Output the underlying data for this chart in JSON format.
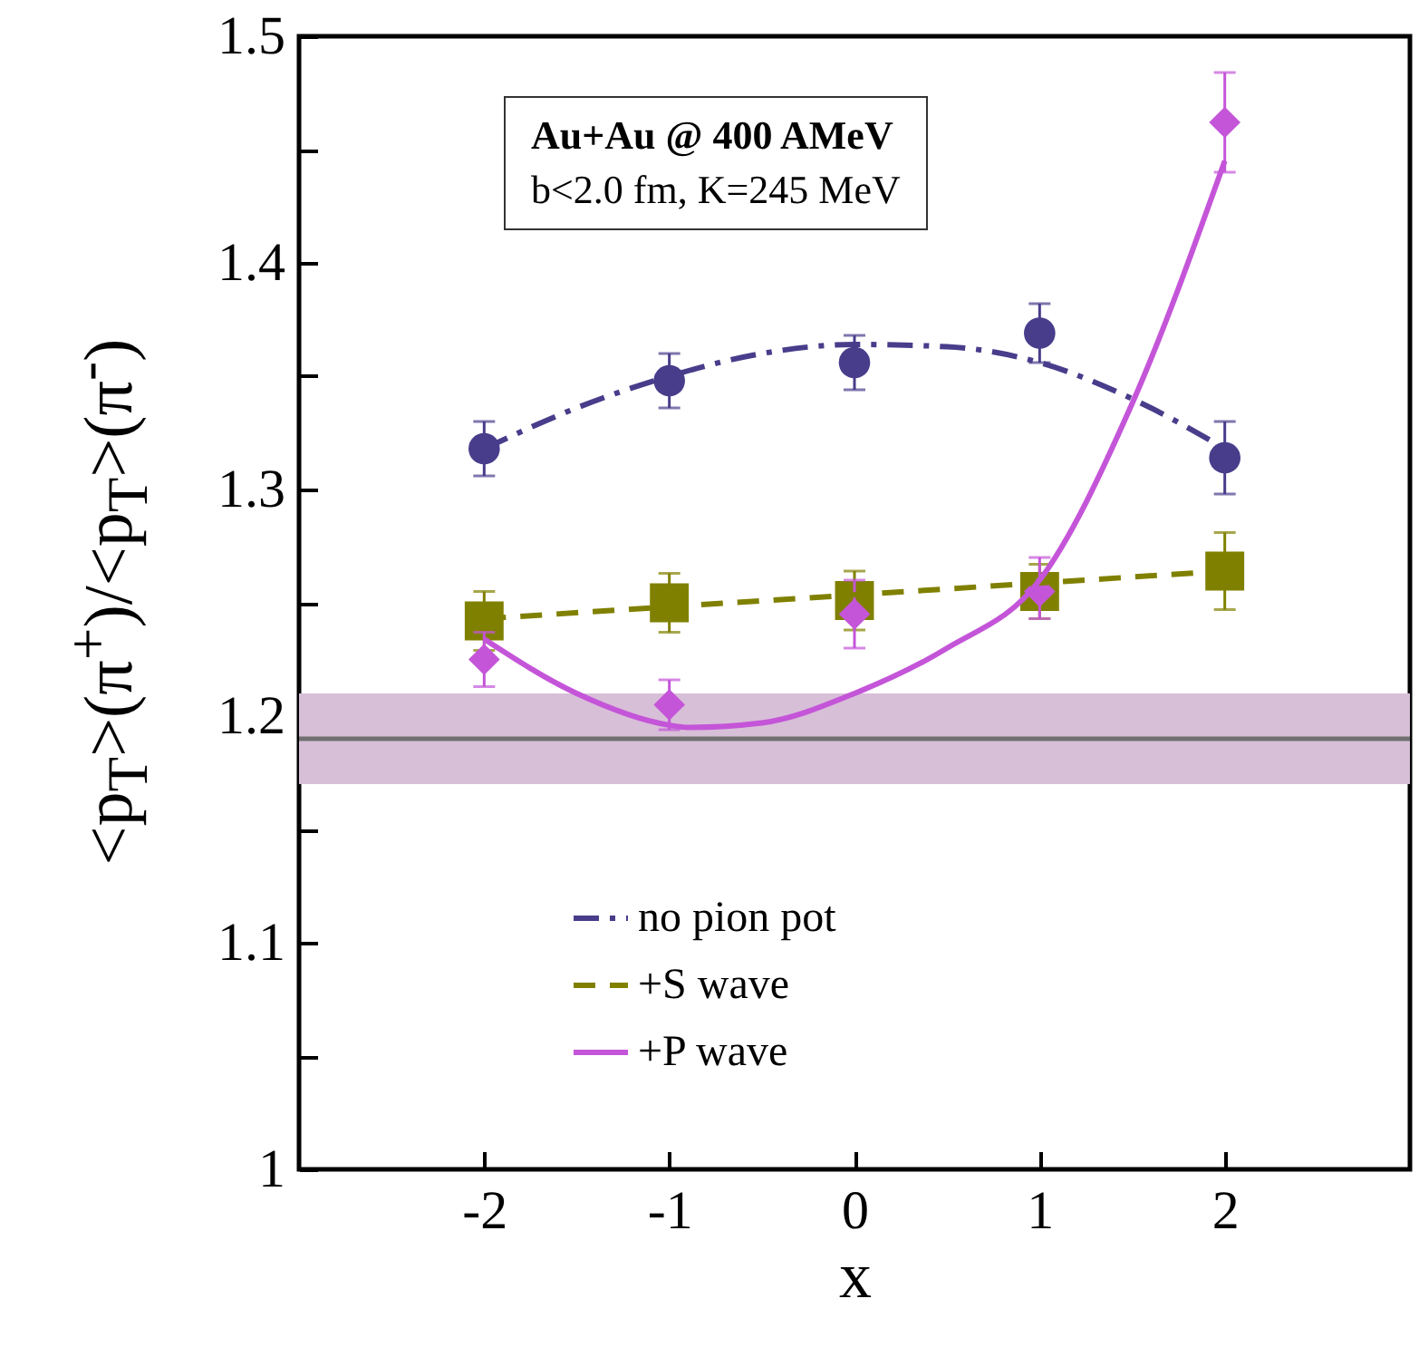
{
  "chart_data": {
    "type": "scatter",
    "xlabel": "x",
    "ylabel": "<p$_{T}$>(π$^{+}$)/<p$_{T}$>(π$^{-}$)",
    "annotations": [
      "Au+Au @ 400 AMeV",
      "b<2.0 fm, K=245 MeV"
    ],
    "xlim": [
      -3,
      3
    ],
    "ylim": [
      1.0,
      1.5
    ],
    "xticks": [
      -2,
      -1,
      0,
      1,
      2
    ],
    "yticks": [
      1.0,
      {
        "value": 1.05,
        "label": null
      },
      1.1,
      {
        "value": 1.15,
        "label": null
      },
      1.2,
      {
        "value": 1.25,
        "label": null
      },
      1.3,
      {
        "value": 1.35,
        "label": null
      },
      1.4,
      {
        "value": 1.45,
        "label": null
      },
      1.5
    ],
    "legend": "bottom",
    "grid": false,
    "bands": [
      {
        "axis": "y",
        "from": 1.17,
        "to": 1.21,
        "color": "#d8bfd8"
      }
    ],
    "ref_lines": [
      {
        "axis": "y",
        "value": 1.19,
        "color": "#707070"
      }
    ],
    "series": [
      {
        "type": "scatter",
        "color": "#483d8b",
        "marker": "circle",
        "x": [
          -2,
          -1,
          0,
          1,
          2
        ],
        "values": [
          1.318,
          1.348,
          1.356,
          1.369,
          1.314
        ],
        "errors": [
          0.012,
          0.012,
          0.012,
          0.013,
          0.016
        ]
      },
      {
        "type": "scatter",
        "color": "#808000",
        "marker": "square",
        "x": [
          -2,
          -1,
          0,
          1,
          2
        ],
        "values": [
          1.242,
          1.25,
          1.251,
          1.255,
          1.264
        ],
        "errors": [
          0.013,
          0.013,
          0.013,
          0.012,
          0.017
        ]
      },
      {
        "type": "scatter",
        "color": "#c455d8",
        "marker": "diamond",
        "x": [
          -2,
          -1,
          0,
          1,
          2
        ],
        "values": [
          1.225,
          1.205,
          1.245,
          1.255,
          1.462
        ],
        "errors": [
          0.012,
          0.011,
          0.015,
          [
            1.243,
            1.27
          ],
          0.022
        ]
      },
      {
        "type": "line",
        "name": "no pion pot",
        "color": "#483d8b",
        "line_style": "dashdot",
        "x": [
          -2,
          -1.5,
          -1,
          -0.5,
          0,
          0.5,
          1,
          1.5,
          2
        ],
        "values": [
          1.318,
          1.336,
          1.35,
          1.36,
          1.364,
          1.363,
          1.356,
          1.34,
          1.318
        ]
      },
      {
        "type": "line",
        "name": "+S wave",
        "color": "#808000",
        "line_style": "dashed",
        "x": [
          -2,
          2
        ],
        "values": [
          1.243,
          1.264
        ]
      },
      {
        "type": "line",
        "name": "+P wave",
        "color": "#c455d8",
        "line_style": "solid",
        "x": [
          -2,
          -1.5,
          -1,
          -0.9,
          -0.5,
          0,
          0.5,
          1,
          1.5,
          2
        ],
        "values": [
          1.234,
          1.21,
          1.196,
          1.195,
          1.197,
          1.21,
          1.23,
          1.26,
          1.338,
          1.445
        ]
      }
    ]
  }
}
